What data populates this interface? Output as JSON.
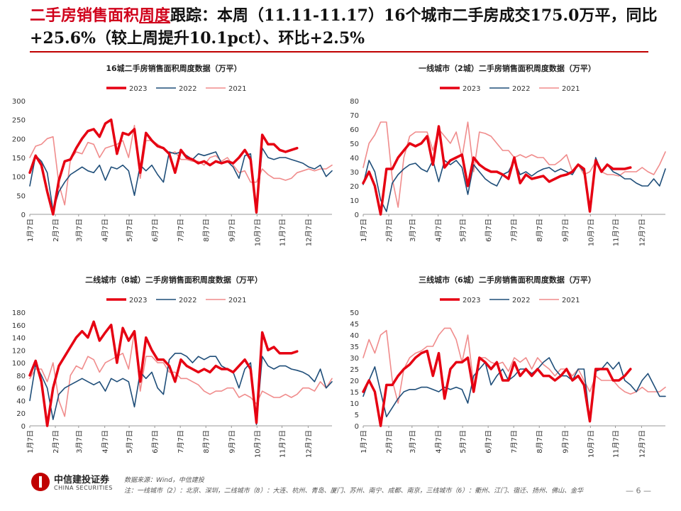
{
  "headline": {
    "red": "二手房销售面积",
    "underlined": "周度",
    "rest": "跟踪：本周（11.11-11.17）16个城市二手房成交175.0万平，同比+25.6%（较上周提升10.1pct）、环比+2.5%"
  },
  "colors": {
    "s2023": "#e60012",
    "s2022": "#1f4e79",
    "s2021": "#f08c8c",
    "accent": "#c00000"
  },
  "chart_data": [
    {
      "type": "line",
      "title": "16城二手房销售面积周度数据（万平）",
      "legend_position": "top",
      "ylim": [
        0,
        300
      ],
      "yticks": [
        0,
        50,
        100,
        150,
        200,
        250,
        300
      ],
      "x_range": [
        1,
        53
      ],
      "xtick_labels": [
        "1月7日",
        "2月7日",
        "3月7日",
        "4月7日",
        "5月7日",
        "6月7日",
        "7月7日",
        "8月7日",
        "9月7日",
        "10月7日",
        "11月7日",
        "12月7日"
      ],
      "xtick_pos": [
        1.0,
        5.4,
        9.4,
        13.9,
        18.1,
        22.5,
        26.9,
        31.3,
        35.7,
        40.1,
        44.4,
        48.9
      ],
      "series": [
        {
          "name": "2023",
          "width": 3.5,
          "values": [
            110,
            155,
            130,
            60,
            0,
            90,
            140,
            145,
            175,
            200,
            220,
            225,
            205,
            240,
            250,
            160,
            215,
            210,
            225,
            110,
            215,
            195,
            180,
            175,
            160,
            110,
            170,
            150,
            145,
            135,
            140,
            130,
            140,
            135,
            140,
            135,
            150,
            170,
            145,
            5,
            210,
            185,
            185,
            170,
            165,
            170,
            175
          ]
        },
        {
          "name": "2022",
          "width": 1.6,
          "values": [
            75,
            155,
            140,
            110,
            10,
            60,
            85,
            105,
            115,
            125,
            115,
            110,
            130,
            90,
            125,
            120,
            130,
            115,
            50,
            130,
            115,
            130,
            105,
            85,
            165,
            160,
            165,
            155,
            145,
            160,
            155,
            160,
            165,
            135,
            140,
            125,
            95,
            155,
            160,
            3,
            175,
            150,
            145,
            150,
            150,
            145,
            140,
            135,
            125,
            120,
            130,
            100,
            115
          ]
        },
        {
          "name": "2021",
          "width": 1.6,
          "values": [
            150,
            180,
            185,
            200,
            205,
            80,
            25,
            145,
            165,
            160,
            190,
            185,
            150,
            175,
            180,
            185,
            195,
            150,
            235,
            95,
            195,
            195,
            185,
            175,
            160,
            165,
            145,
            145,
            140,
            140,
            130,
            150,
            155,
            140,
            150,
            130,
            110,
            115,
            85,
            85,
            120,
            105,
            95,
            95,
            90,
            95,
            110,
            115,
            120,
            115,
            120,
            120,
            130
          ]
        }
      ]
    },
    {
      "type": "line",
      "title": "一线城市（2城）二手房销售面积周度数据（万平）",
      "legend_position": "top",
      "ylim": [
        0,
        80
      ],
      "yticks": [
        0,
        10,
        20,
        30,
        40,
        50,
        60,
        70,
        80
      ],
      "x_range": [
        1,
        53
      ],
      "xtick_labels": [
        "1月7日",
        "2月7日",
        "3月7日",
        "4月7日",
        "5月7日",
        "6月7日",
        "7月7日",
        "8月7日",
        "9月7日",
        "10月7日",
        "11月7日",
        "12月7日"
      ],
      "xtick_pos": [
        1.0,
        5.4,
        9.4,
        13.9,
        18.1,
        22.5,
        26.9,
        31.3,
        35.7,
        40.1,
        44.4,
        48.9
      ],
      "series": [
        {
          "name": "2023",
          "width": 3.5,
          "values": [
            22,
            30,
            20,
            0,
            32,
            32,
            40,
            45,
            50,
            48,
            50,
            55,
            35,
            62,
            33,
            38,
            40,
            42,
            20,
            40,
            35,
            32,
            30,
            30,
            28,
            25,
            40,
            22,
            28,
            25,
            26,
            27,
            23,
            25,
            27,
            28,
            30,
            35,
            32,
            2,
            38,
            30,
            35,
            32,
            32,
            32,
            33
          ]
        },
        {
          "name": "2022",
          "width": 1.6,
          "values": [
            21,
            38,
            30,
            10,
            2,
            22,
            28,
            32,
            35,
            36,
            32,
            30,
            38,
            23,
            38,
            35,
            38,
            33,
            14,
            35,
            30,
            25,
            22,
            20,
            28,
            30,
            38,
            28,
            30,
            27,
            30,
            32,
            33,
            30,
            32,
            30,
            28,
            35,
            30,
            2,
            40,
            30,
            35,
            30,
            28,
            25,
            25,
            22,
            20,
            20,
            25,
            20,
            32
          ]
        },
        {
          "name": "2021",
          "width": 1.6,
          "values": [
            33,
            50,
            56,
            65,
            65,
            25,
            5,
            40,
            55,
            58,
            58,
            58,
            45,
            60,
            55,
            50,
            58,
            40,
            65,
            30,
            58,
            57,
            55,
            50,
            45,
            45,
            40,
            42,
            40,
            42,
            40,
            40,
            35,
            35,
            38,
            42,
            30,
            35,
            28,
            30,
            37,
            30,
            28,
            28,
            27,
            30,
            30,
            30,
            33,
            30,
            28,
            35,
            44
          ]
        }
      ]
    },
    {
      "type": "line",
      "title": "二线城市（8城）二手房销售面积周度数据（万平）",
      "legend_position": "top",
      "ylim": [
        0,
        180
      ],
      "yticks": [
        0,
        20,
        40,
        60,
        80,
        100,
        120,
        140,
        160,
        180
      ],
      "x_range": [
        1,
        53
      ],
      "xtick_labels": [
        "1月7日",
        "2月7日",
        "3月7日",
        "4月7日",
        "5月7日",
        "6月7日",
        "7月7日",
        "8月7日",
        "9月7日",
        "10月7日",
        "11月7日",
        "12月7日"
      ],
      "xtick_pos": [
        1.0,
        5.4,
        9.4,
        13.9,
        18.1,
        22.5,
        26.9,
        31.3,
        35.7,
        40.1,
        44.4,
        48.9
      ],
      "series": [
        {
          "name": "2023",
          "width": 3.5,
          "values": [
            80,
            103,
            70,
            0,
            60,
            95,
            110,
            125,
            140,
            150,
            140,
            165,
            135,
            148,
            160,
            100,
            155,
            135,
            150,
            70,
            140,
            120,
            105,
            105,
            95,
            70,
            105,
            95,
            90,
            85,
            90,
            85,
            95,
            90,
            90,
            85,
            95,
            105,
            90,
            5,
            148,
            120,
            125,
            115,
            115,
            115,
            118
          ]
        },
        {
          "name": "2022",
          "width": 1.6,
          "values": [
            40,
            97,
            80,
            60,
            10,
            50,
            60,
            65,
            70,
            75,
            70,
            65,
            70,
            55,
            75,
            70,
            75,
            70,
            30,
            85,
            75,
            85,
            60,
            50,
            105,
            115,
            115,
            110,
            100,
            110,
            105,
            110,
            110,
            95,
            90,
            85,
            60,
            90,
            100,
            2,
            110,
            95,
            90,
            95,
            95,
            90,
            88,
            85,
            80,
            70,
            90,
            60,
            70
          ]
        },
        {
          "name": "2021",
          "width": 1.6,
          "values": [
            75,
            90,
            90,
            70,
            100,
            40,
            15,
            80,
            95,
            90,
            110,
            105,
            85,
            100,
            105,
            110,
            115,
            90,
            150,
            55,
            110,
            110,
            100,
            100,
            85,
            85,
            75,
            75,
            70,
            65,
            55,
            50,
            55,
            55,
            60,
            60,
            45,
            50,
            45,
            35,
            55,
            50,
            45,
            45,
            50,
            45,
            50,
            60,
            60,
            55,
            70,
            60,
            75
          ]
        }
      ]
    },
    {
      "type": "line",
      "title": "三线城市（6城）二手房销售面积周度数据（万平）",
      "legend_position": "top",
      "ylim": [
        0,
        50
      ],
      "yticks": [
        0,
        5,
        10,
        15,
        20,
        25,
        30,
        35,
        40,
        45,
        50
      ],
      "x_range": [
        1,
        53
      ],
      "xtick_labels": [
        "1月7日",
        "2月7日",
        "3月7日",
        "4月7日",
        "5月7日",
        "6月7日",
        "7月7日",
        "8月7日",
        "9月7日",
        "10月7日",
        "11月7日",
        "12月7日"
      ],
      "xtick_pos": [
        1.0,
        5.4,
        9.4,
        13.9,
        18.1,
        22.5,
        26.9,
        31.3,
        35.7,
        40.1,
        44.4,
        48.9
      ],
      "series": [
        {
          "name": "2023",
          "width": 3.5,
          "values": [
            15,
            20,
            15,
            0,
            18,
            18,
            22,
            25,
            27,
            30,
            32,
            33,
            22,
            32,
            12,
            25,
            28,
            28,
            30,
            15,
            30,
            28,
            25,
            28,
            20,
            20,
            28,
            22,
            25,
            22,
            25,
            22,
            22,
            20,
            22,
            25,
            20,
            22,
            18,
            2,
            25,
            25,
            25,
            20,
            20,
            22,
            25
          ]
        },
        {
          "name": "2022",
          "width": 1.6,
          "values": [
            13,
            20,
            26,
            15,
            4,
            8,
            12,
            15,
            16,
            16,
            17,
            17,
            16,
            15,
            17,
            16,
            17,
            16,
            10,
            22,
            25,
            28,
            18,
            22,
            25,
            20,
            22,
            25,
            25,
            23,
            25,
            28,
            30,
            25,
            22,
            22,
            20,
            25,
            25,
            2,
            24,
            25,
            28,
            25,
            28,
            20,
            18,
            15,
            20,
            23,
            18,
            13,
            13
          ]
        },
        {
          "name": "2021",
          "width": 1.6,
          "values": [
            30,
            38,
            32,
            40,
            42,
            20,
            10,
            25,
            30,
            32,
            33,
            35,
            35,
            40,
            43,
            43,
            38,
            28,
            40,
            18,
            30,
            30,
            28,
            27,
            28,
            24,
            30,
            28,
            30,
            25,
            30,
            27,
            25,
            22,
            25,
            25,
            22,
            25,
            20,
            15,
            22,
            20,
            20,
            20,
            17,
            15,
            14,
            15,
            17,
            15,
            15,
            15,
            17
          ]
        }
      ]
    }
  ],
  "footer": {
    "source": "数据来源：Wind，中信建投",
    "note": "注：一线城市（2）：北京、深圳，二线城市（8）：大连、杭州、青岛、厦门、苏州、南宁、成都、南京，三线城市（6）：衢州、江门、宿迁、扬州、佛山、金华"
  },
  "logo": {
    "cn": "中信建投证券",
    "en": "CHINA SECURITIES"
  },
  "page": "— 6 —"
}
